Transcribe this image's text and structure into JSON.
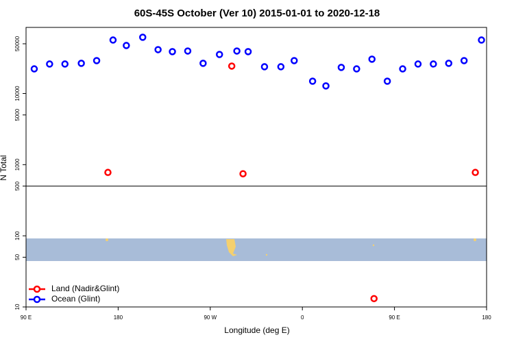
{
  "chart_data": {
    "type": "scatter",
    "title": "60S-45S October (Ver 10)   2015-01-01 to 2020-12-18",
    "x_label": "Longitude (deg E)",
    "y_label": "N Total",
    "log_y": true,
    "legend_position": "lower left",
    "xlim": [
      90,
      540
    ],
    "ylim": [
      10,
      85000
    ],
    "xticks": [
      {
        "value": 90,
        "label": "90 E"
      },
      {
        "value": 180,
        "label": "180"
      },
      {
        "value": 270,
        "label": "90 W"
      },
      {
        "value": 360,
        "label": "0"
      },
      {
        "value": 450,
        "label": "90 E"
      },
      {
        "value": 540,
        "label": "180"
      }
    ],
    "yticks": [
      10,
      50,
      100,
      500,
      1000,
      5000,
      10000,
      50000
    ],
    "reference_line": 500,
    "series": [
      {
        "name": "Land (Nadir&Glint)",
        "color": "#ff0000",
        "x": [
          170,
          291,
          302,
          430,
          529
        ],
        "values": [
          778,
          24300,
          745,
          13.1,
          778
        ]
      },
      {
        "name": "Ocean (Glint)",
        "color": "#0000ff",
        "x": [
          98,
          113,
          128,
          144,
          159,
          175,
          188,
          204,
          219,
          233,
          248,
          263,
          279,
          296,
          307,
          323,
          339,
          352,
          370,
          383,
          398,
          413,
          428,
          443,
          458,
          473,
          488,
          503,
          518,
          535
        ],
        "values": [
          22200,
          26000,
          26000,
          26600,
          29000,
          56500,
          47300,
          61800,
          41400,
          38800,
          39600,
          26600,
          35400,
          39600,
          38800,
          23800,
          23800,
          29000,
          14900,
          12800,
          23300,
          22200,
          30400,
          14900,
          22200,
          26000,
          26000,
          26600,
          29000,
          56500
        ]
      }
    ]
  }
}
